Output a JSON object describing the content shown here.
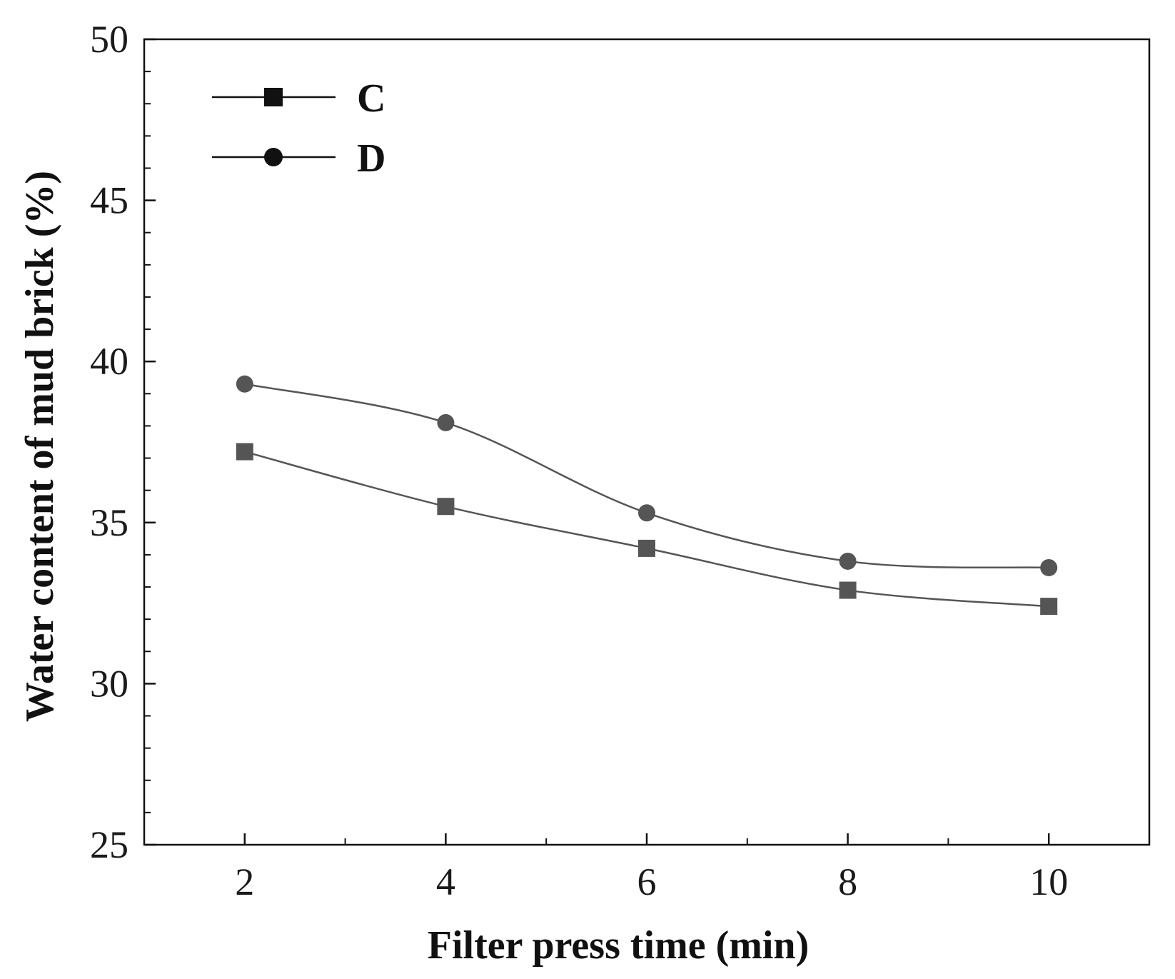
{
  "chart_data": {
    "type": "line",
    "title": "",
    "xlabel": "Filter press time (min)",
    "ylabel": "Water content of mud brick (%)",
    "xlim": [
      1,
      11
    ],
    "ylim": [
      25,
      50
    ],
    "xticks": [
      2,
      4,
      6,
      8,
      10
    ],
    "yticks": [
      25,
      30,
      35,
      40,
      45,
      50
    ],
    "x_minor_step": 1,
    "y_minor_step": 1,
    "grid": false,
    "legend_position": "top-left",
    "series": [
      {
        "name": "C",
        "marker": "square",
        "x": [
          2,
          4,
          6,
          8,
          10
        ],
        "values": [
          37.2,
          35.5,
          34.2,
          32.9,
          32.4
        ]
      },
      {
        "name": "D",
        "marker": "circle",
        "x": [
          2,
          4,
          6,
          8,
          10
        ],
        "values": [
          39.3,
          38.1,
          35.3,
          33.8,
          33.6
        ]
      }
    ],
    "colors": {
      "axis": "#111111",
      "line": "#555555",
      "marker": "#555555",
      "legend_marker": "#111111"
    }
  }
}
